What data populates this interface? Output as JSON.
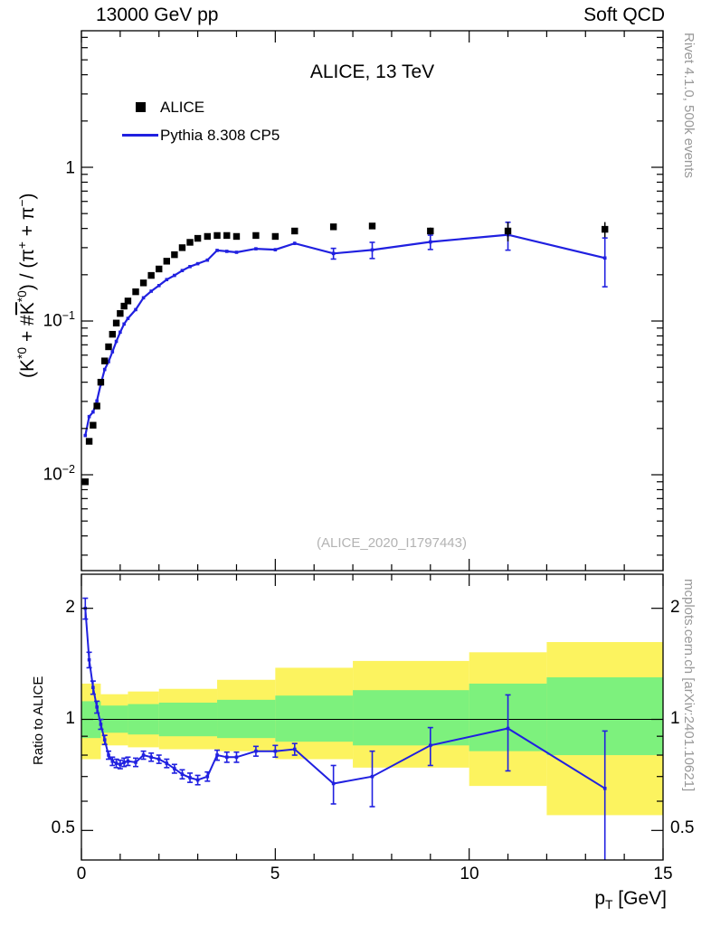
{
  "header": {
    "left": "13000 GeV pp",
    "right": "Soft QCD"
  },
  "title": "ALICE, 13 TeV",
  "legend": [
    {
      "label": "ALICE",
      "marker": "black-square"
    },
    {
      "label": "Pythia 8.308 CP5",
      "marker": "blue-line"
    }
  ],
  "ylabel": {
    "p0": "(K",
    "s0": "*0",
    "p1": " + #",
    "k": "K",
    "s1": "*0",
    "p2": ") / (π",
    "s2": "+",
    "p3": " + π",
    "s3": "−",
    "p4": ")"
  },
  "ratio_ylabel": "Ratio to ALICE",
  "xlabel": {
    "p": "p",
    "sub": "T",
    "rest": " [GeV]"
  },
  "watermark": "(ALICE_2020_I1797443)",
  "side_top": "Rivet 4.1.0,  500k events",
  "side_bottom": "mcplots.cern.ch [arXiv:2401.10621]",
  "yticks_main": [
    {
      "base": "1",
      "exp": ""
    },
    {
      "base": "10",
      "exp": "−1"
    },
    {
      "base": "10",
      "exp": "−2"
    }
  ],
  "yticks_ratio_left": [
    "2",
    "1",
    "0.5"
  ],
  "yticks_ratio_right": [
    "2",
    "1",
    "0.5"
  ],
  "xticks": [
    "0",
    "5",
    "10",
    "15"
  ],
  "colors": {
    "mc_line": "#2020e0",
    "data_marker": "#000000",
    "band_outer": "#fcf35f",
    "band_inner": "#7df17d",
    "watermark": "#b3b3b3",
    "side_text": "#999999"
  },
  "chart_data": {
    "type": "line",
    "title": "ALICE, 13 TeV",
    "xlabel": "p_T [GeV]",
    "ylabel": "(K*0 + #Kbar*0) / (pi+ + pi-)",
    "xlim": [
      0,
      15
    ],
    "main_ylog": true,
    "main_ylim": [
      0.0024,
      7.6
    ],
    "ratio_ylog": true,
    "ratio_ylim": [
      0.416,
      2.47
    ],
    "legend_position": "top-left",
    "series": [
      {
        "name": "ALICE",
        "type": "scatter-square",
        "color": "#000000",
        "points": [
          [
            0.1,
            0.009,
            0
          ],
          [
            0.2,
            0.0165,
            0
          ],
          [
            0.3,
            0.021,
            0
          ],
          [
            0.4,
            0.028,
            0
          ],
          [
            0.5,
            0.04,
            0
          ],
          [
            0.6,
            0.055,
            0
          ],
          [
            0.7,
            0.068,
            0
          ],
          [
            0.8,
            0.082,
            0
          ],
          [
            0.9,
            0.097,
            0
          ],
          [
            1.0,
            0.112,
            0
          ],
          [
            1.1,
            0.125,
            0
          ],
          [
            1.2,
            0.135,
            0
          ],
          [
            1.4,
            0.155,
            0
          ],
          [
            1.6,
            0.177,
            0
          ],
          [
            1.8,
            0.198,
            0
          ],
          [
            2.0,
            0.218,
            0
          ],
          [
            2.2,
            0.245,
            0
          ],
          [
            2.4,
            0.27,
            0
          ],
          [
            2.6,
            0.3,
            0
          ],
          [
            2.8,
            0.325,
            0
          ],
          [
            3.0,
            0.345,
            0
          ],
          [
            3.25,
            0.355,
            0
          ],
          [
            3.5,
            0.36,
            0
          ],
          [
            3.75,
            0.36,
            0
          ],
          [
            4.0,
            0.355,
            0
          ],
          [
            4.5,
            0.36,
            0
          ],
          [
            5.0,
            0.355,
            0
          ],
          [
            5.5,
            0.385,
            0
          ],
          [
            6.5,
            0.41,
            0.012
          ],
          [
            7.5,
            0.415,
            0.015
          ],
          [
            9.0,
            0.385,
            0.02
          ],
          [
            11.0,
            0.385,
            0.055
          ],
          [
            13.5,
            0.395,
            0.045
          ]
        ]
      },
      {
        "name": "Pythia 8.308 CP5",
        "type": "line",
        "color": "#2020e0",
        "points": [
          [
            0.1,
            0.018,
            0
          ],
          [
            0.2,
            0.0239,
            0
          ],
          [
            0.3,
            0.0256,
            0
          ],
          [
            0.4,
            0.0302,
            0
          ],
          [
            0.5,
            0.0388,
            0
          ],
          [
            0.6,
            0.0484,
            0
          ],
          [
            0.7,
            0.0544,
            0
          ],
          [
            0.8,
            0.0631,
            0
          ],
          [
            0.9,
            0.0737,
            0
          ],
          [
            1.0,
            0.0846,
            0
          ],
          [
            1.1,
            0.0956,
            0
          ],
          [
            1.2,
            0.104,
            0
          ],
          [
            1.4,
            0.1186,
            0
          ],
          [
            1.6,
            0.1416,
            0.002
          ],
          [
            1.8,
            0.1564,
            0.002
          ],
          [
            2.0,
            0.17,
            0.003
          ],
          [
            2.2,
            0.186,
            0.003
          ],
          [
            2.4,
            0.198,
            0.003
          ],
          [
            2.6,
            0.213,
            0.003
          ],
          [
            2.8,
            0.226,
            0.004
          ],
          [
            3.0,
            0.236,
            0.004
          ],
          [
            3.25,
            0.249,
            0.004
          ],
          [
            3.5,
            0.288,
            0.005
          ],
          [
            3.75,
            0.284,
            0.005
          ],
          [
            4.0,
            0.28,
            0.005
          ],
          [
            4.5,
            0.295,
            0.006
          ],
          [
            5.0,
            0.291,
            0.007
          ],
          [
            5.5,
            0.32,
            0.008
          ],
          [
            6.5,
            0.275,
            0.022
          ],
          [
            7.5,
            0.29,
            0.035
          ],
          [
            9.0,
            0.327,
            0.035
          ],
          [
            11.0,
            0.364,
            0.075
          ],
          [
            13.5,
            0.257,
            0.09
          ]
        ]
      }
    ],
    "ratio": {
      "name": "Pythia 8.308 CP5 / ALICE",
      "color": "#2020e0",
      "baseline": 1,
      "points": [
        [
          0.1,
          2.0,
          0.13
        ],
        [
          0.2,
          1.45,
          0.07
        ],
        [
          0.3,
          1.22,
          0.05
        ],
        [
          0.4,
          1.08,
          0.04
        ],
        [
          0.5,
          0.97,
          0.03
        ],
        [
          0.6,
          0.88,
          0.025
        ],
        [
          0.7,
          0.8,
          0.02
        ],
        [
          0.8,
          0.77,
          0.02
        ],
        [
          0.9,
          0.76,
          0.02
        ],
        [
          1.0,
          0.755,
          0.02
        ],
        [
          1.1,
          0.765,
          0.02
        ],
        [
          1.2,
          0.77,
          0.02
        ],
        [
          1.4,
          0.765,
          0.02
        ],
        [
          1.6,
          0.8,
          0.02
        ],
        [
          1.8,
          0.79,
          0.02
        ],
        [
          2.0,
          0.78,
          0.02
        ],
        [
          2.2,
          0.76,
          0.02
        ],
        [
          2.4,
          0.735,
          0.02
        ],
        [
          2.6,
          0.71,
          0.02
        ],
        [
          2.8,
          0.695,
          0.02
        ],
        [
          3.0,
          0.685,
          0.02
        ],
        [
          3.25,
          0.7,
          0.02
        ],
        [
          3.5,
          0.8,
          0.025
        ],
        [
          3.75,
          0.79,
          0.025
        ],
        [
          4.0,
          0.79,
          0.025
        ],
        [
          4.5,
          0.82,
          0.025
        ],
        [
          5.0,
          0.82,
          0.03
        ],
        [
          5.5,
          0.83,
          0.03
        ],
        [
          6.5,
          0.67,
          0.08
        ],
        [
          7.5,
          0.7,
          0.12
        ],
        [
          9.0,
          0.85,
          0.1
        ],
        [
          11.0,
          0.945,
          0.22
        ],
        [
          13.5,
          0.65,
          0.28
        ]
      ],
      "bands": {
        "yellow": [
          [
            0,
            0.5,
            0.78,
            1.25
          ],
          [
            0.5,
            1.2,
            0.85,
            1.17
          ],
          [
            1.2,
            2.0,
            0.84,
            1.19
          ],
          [
            2.0,
            3.5,
            0.83,
            1.21
          ],
          [
            3.5,
            5.0,
            0.82,
            1.28
          ],
          [
            5.0,
            7.0,
            0.78,
            1.38
          ],
          [
            7.0,
            10.0,
            0.74,
            1.44
          ],
          [
            10.0,
            12.0,
            0.66,
            1.52
          ],
          [
            12.0,
            15.0,
            0.55,
            1.62
          ]
        ],
        "green": [
          [
            0,
            0.5,
            0.89,
            1.12
          ],
          [
            0.5,
            1.2,
            0.92,
            1.09
          ],
          [
            1.2,
            2.0,
            0.91,
            1.1
          ],
          [
            2.0,
            3.5,
            0.9,
            1.11
          ],
          [
            3.5,
            5.0,
            0.89,
            1.13
          ],
          [
            5.0,
            7.0,
            0.87,
            1.16
          ],
          [
            7.0,
            10.0,
            0.85,
            1.2
          ],
          [
            10.0,
            12.0,
            0.82,
            1.25
          ],
          [
            12.0,
            15.0,
            0.8,
            1.3
          ]
        ]
      }
    }
  }
}
